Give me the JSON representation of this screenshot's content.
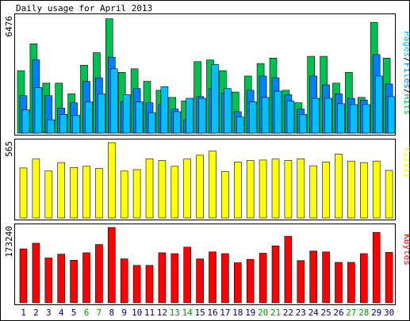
{
  "chart_data": {
    "type": "bar",
    "title": "Daily usage for April 2013",
    "categories": [
      "1",
      "2",
      "3",
      "4",
      "5",
      "6",
      "7",
      "8",
      "9",
      "10",
      "11",
      "12",
      "13",
      "14",
      "15",
      "16",
      "17",
      "18",
      "19",
      "20",
      "21",
      "22",
      "23",
      "24",
      "25",
      "26",
      "27",
      "28",
      "29",
      "30"
    ],
    "weekend_days": [
      "6",
      "7",
      "13",
      "14",
      "20",
      "21",
      "27",
      "28"
    ],
    "colors": {
      "hits": "#00c050",
      "files": "#0080ff",
      "pages": "#00c0ff",
      "visits": "#ffff00",
      "kbytes": "#ff0000",
      "weekday_label": "#000080",
      "weekend_label": "#00a000"
    },
    "panels": [
      {
        "name": "hits-files-pages",
        "ytick_label": "6476",
        "ymax": 6476,
        "legend": [
          {
            "text": "Pages",
            "color": "#00c0ff"
          },
          {
            "text": "/",
            "color": "#000000"
          },
          {
            "text": "Files",
            "color": "#0080ff"
          },
          {
            "text": "/",
            "color": "#000000"
          },
          {
            "text": "Hits",
            "color": "#00c050"
          }
        ],
        "series": [
          {
            "name": "Hits",
            "values": [
              3500,
              5000,
              2800,
              2800,
              2200,
              3800,
              4500,
              6400,
              3400,
              3600,
              2900,
              2400,
              2000,
              1800,
              4000,
              4100,
              3500,
              2300,
              3200,
              3900,
              4200,
              2400,
              1700,
              4300,
              4300,
              2800,
              3400,
              2000,
              6200,
              4200
            ]
          },
          {
            "name": "Files",
            "values": [
              2100,
              4100,
              2100,
              1400,
              1700,
              2900,
              3100,
              4250,
              1750,
              2500,
              1700,
              1600,
              1350,
              750,
              2050,
              2500,
              2250,
              1200,
              2400,
              3200,
              3100,
              2150,
              1350,
              3200,
              2700,
              2200,
              1950,
              1850,
              4400,
              2750
            ]
          },
          {
            "name": "Pages",
            "values": [
              1300,
              2550,
              750,
              1050,
              1000,
              1750,
              2200,
              3600,
              2150,
              1750,
              1150,
              2600,
              1200,
              1950,
              1950,
              3850,
              2500,
              900,
              1750,
              2000,
              2350,
              1800,
              1050,
              1950,
              1950,
              1650,
              1600,
              1600,
              3200,
              2050
            ]
          }
        ]
      },
      {
        "name": "visits",
        "ytick_label": "565",
        "ymax": 565,
        "legend": [
          {
            "text": "Visits",
            "color": "#ffff00"
          }
        ],
        "series": [
          {
            "name": "Visits",
            "values": [
              375,
              442,
              352,
              416,
              379,
              388,
              371,
              565,
              352,
              363,
              444,
              431,
              388,
              442,
              471,
              502,
              348,
              420,
              431,
              435,
              442,
              431,
              444,
              392,
              420,
              480,
              427,
              416,
              427,
              357
            ]
          }
        ]
      },
      {
        "name": "kbytes",
        "ytick_label": "173240",
        "ymax": 173240,
        "legend": [
          {
            "text": "KBytes",
            "color": "#ff0000"
          }
        ],
        "series": [
          {
            "name": "KBytes",
            "values": [
              124000,
              137000,
              103000,
              112000,
              98000,
              115000,
              134000,
              173240,
              101000,
              86000,
              86000,
              115000,
              113000,
              128000,
              101000,
              117000,
              113000,
              92000,
              100000,
              114000,
              131000,
              153000,
              97000,
              119000,
              117000,
              93000,
              93000,
              113000,
              162000,
              116000
            ]
          }
        ]
      }
    ]
  }
}
